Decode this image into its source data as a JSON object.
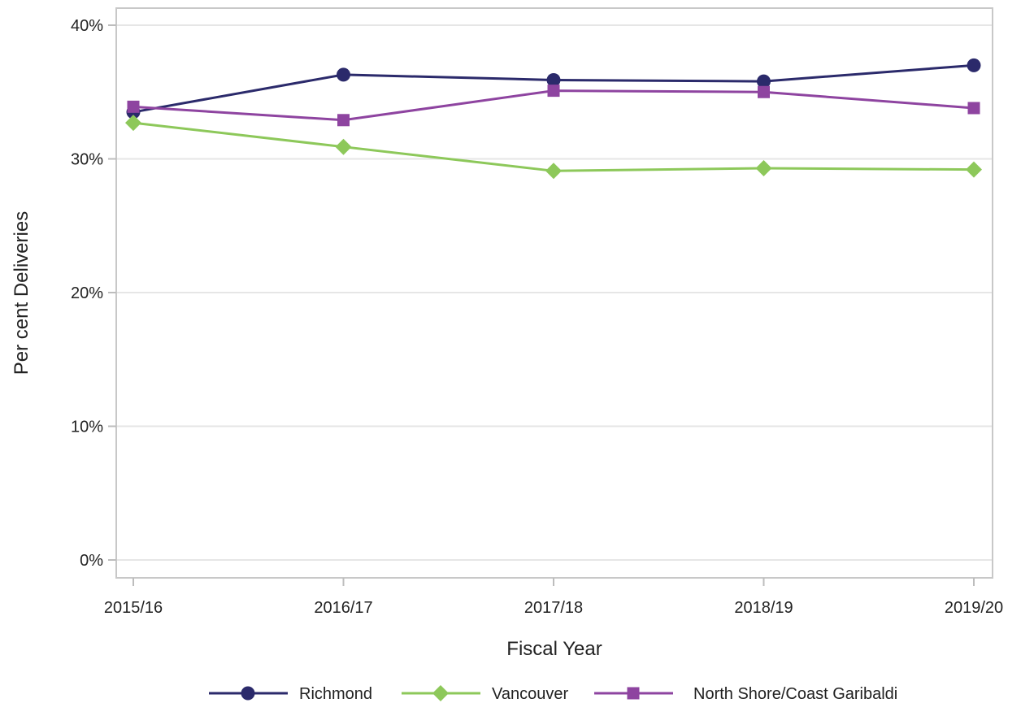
{
  "chart_data": {
    "type": "line",
    "title": "",
    "xlabel": "Fiscal Year",
    "ylabel": "Per cent Deliveries",
    "categories": [
      "2015/16",
      "2016/17",
      "2017/18",
      "2018/19",
      "2019/20"
    ],
    "ylim": [
      0,
      40
    ],
    "yticks": [
      0,
      10,
      20,
      30,
      40
    ],
    "ytick_labels": [
      "0%",
      "10%",
      "20%",
      "30%",
      "40%"
    ],
    "grid": "horizontal",
    "legend_position": "bottom",
    "series": [
      {
        "name": "Richmond",
        "values": [
          33.5,
          36.3,
          35.9,
          35.8,
          37.0
        ],
        "color": "#2b2a6b",
        "marker": "circle"
      },
      {
        "name": "Vancouver",
        "values": [
          32.7,
          30.9,
          29.1,
          29.3,
          29.2
        ],
        "color": "#8dc85a",
        "marker": "diamond"
      },
      {
        "name": "North Shore/Coast Garibaldi",
        "values": [
          33.9,
          32.9,
          35.1,
          35.0,
          33.8
        ],
        "color": "#8e44a0",
        "marker": "square"
      }
    ]
  }
}
